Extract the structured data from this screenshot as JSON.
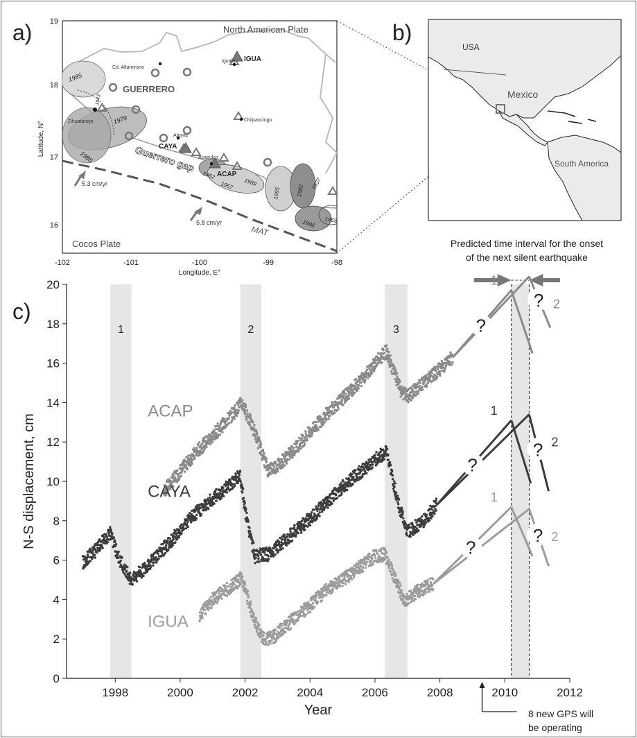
{
  "panels": {
    "a": {
      "label": "a)",
      "xlabel": "Longitude, E°",
      "ylabel": "Latitude, N°",
      "xticks": [
        "-102",
        "-101",
        "-100",
        "-99",
        "-98"
      ],
      "yticks": [
        "19",
        "18",
        "17",
        "16"
      ],
      "plate_north": "North American Plate",
      "plate_cocos": "Cocos Plate",
      "state": "GUERRERO",
      "gap": "Guerrero gap",
      "trench": "MAT",
      "rate1": "5.3 cm/yr",
      "rate2": "5.8 cm/yr",
      "cities": [
        "Cd. Altamirano",
        "Iguala",
        "Zihuatanejo",
        "Atoyac",
        "Chilpancingo",
        "Acapulco"
      ],
      "stations": [
        "IGUA",
        "CAYA",
        "ACAP"
      ],
      "quake_years": [
        "1985",
        "1943",
        "1979",
        "1985",
        "1962",
        "1957",
        "1989",
        "1995",
        "1982",
        "1937",
        "1996",
        "1968"
      ]
    },
    "b": {
      "label": "b)",
      "labels": [
        "USA",
        "Mexico",
        "South America"
      ]
    },
    "c": {
      "label": "c)",
      "prediction_text_1": "Predicted time interval for the onset",
      "prediction_text_2": "of the next silent earthquake",
      "gps_note_1": "8 new GPS will",
      "gps_note_2": "be operating",
      "question": "?"
    }
  },
  "chart_data": {
    "type": "scatter",
    "xlabel": "Year",
    "ylabel": "N-S displacement, cm",
    "xlim": [
      1996.5,
      2012
    ],
    "ylim": [
      0,
      20
    ],
    "xticks": [
      1998,
      2000,
      2002,
      2004,
      2006,
      2008,
      2010,
      2012
    ],
    "yticks": [
      0,
      2,
      4,
      6,
      8,
      10,
      12,
      14,
      16,
      18,
      20
    ],
    "events": [
      {
        "label": "1",
        "start": 1997.85,
        "end": 1998.5
      },
      {
        "label": "2",
        "start": 2001.85,
        "end": 2002.5
      },
      {
        "label": "3",
        "start": 2006.3,
        "end": 2007.0
      }
    ],
    "prediction_interval": [
      2010.2,
      2010.75
    ],
    "gps_start_year": 2009.3,
    "series": [
      {
        "name": "ACAP",
        "color": "#8a8a8a",
        "x": [
          1999.5,
          2000.0,
          2000.5,
          2001.0,
          2001.5,
          2001.9,
          2002.3,
          2002.7,
          2003.0,
          2003.5,
          2004.0,
          2004.5,
          2005.0,
          2005.5,
          2006.0,
          2006.35,
          2006.8,
          2007.0,
          2007.5,
          2008.0,
          2008.4
        ],
        "y": [
          9.5,
          10.5,
          11.5,
          12.3,
          13.2,
          14.0,
          12.5,
          10.6,
          10.8,
          11.6,
          12.5,
          13.4,
          14.2,
          15.0,
          16.0,
          16.6,
          14.6,
          14.3,
          15.0,
          15.7,
          16.3
        ]
      },
      {
        "name": "CAYA",
        "color": "#3c3c3c",
        "x": [
          2000.0,
          2000.5,
          2001.0,
          2001.5,
          2001.85,
          2002.0,
          2002.3,
          2002.7,
          2003.0,
          2003.5,
          2004.0,
          2004.5,
          2005.0,
          2005.5,
          2006.0,
          2006.35,
          2006.7,
          2007.0,
          2007.5,
          2007.9
        ],
        "y": [
          7.6,
          8.4,
          9.1,
          9.8,
          10.3,
          8.5,
          6.2,
          6.3,
          6.7,
          7.4,
          8.1,
          8.9,
          9.7,
          10.4,
          11.1,
          11.5,
          9.0,
          7.4,
          8.0,
          8.8
        ]
      },
      {
        "name": "CAYA",
        "color": "#3c3c3c",
        "x": [
          1997.0,
          1997.4,
          1997.85,
          1998.1,
          1998.5,
          1999.0,
          1999.5,
          2000.0
        ],
        "y": [
          5.9,
          6.5,
          7.4,
          6.1,
          5.0,
          5.7,
          6.6,
          7.5
        ]
      },
      {
        "name": "IGUA",
        "color": "#9c9c9c",
        "x": [
          2000.6,
          2001.0,
          2001.5,
          2001.9,
          2002.2,
          2002.5,
          2002.8,
          2003.0,
          2003.5,
          2004.0,
          2004.5,
          2005.0,
          2005.5,
          2006.0,
          2006.3,
          2006.7,
          2006.9,
          2007.3,
          2007.8
        ],
        "y": [
          3.2,
          4.0,
          4.6,
          5.1,
          3.4,
          2.1,
          2.0,
          2.3,
          3.0,
          3.7,
          4.5,
          5.0,
          5.6,
          6.2,
          6.3,
          4.8,
          3.9,
          4.4,
          4.8
        ]
      }
    ],
    "forecast_lines": [
      {
        "series": "ACAP",
        "color": "#8a8a8a",
        "from": [
          2008.4,
          16.3
        ],
        "branches": [
          {
            "label": "1",
            "peak": [
              2010.2,
              19.7
            ],
            "end": [
              2010.85,
              16.5
            ]
          },
          {
            "label": "2",
            "peak": [
              2010.75,
              20.4
            ],
            "end": [
              2011.4,
              17.8
            ]
          }
        ]
      },
      {
        "series": "CAYA",
        "color": "#3c3c3c",
        "from": [
          2007.9,
          8.8
        ],
        "branches": [
          {
            "label": "1",
            "peak": [
              2010.2,
              13.1
            ],
            "end": [
              2010.8,
              9.9
            ]
          },
          {
            "label": "2",
            "peak": [
              2010.75,
              13.4
            ],
            "end": [
              2011.35,
              9.5
            ]
          }
        ]
      },
      {
        "series": "IGUA",
        "color": "#9c9c9c",
        "from": [
          2007.8,
          4.8
        ],
        "branches": [
          {
            "label": "1",
            "peak": [
              2010.2,
              8.7
            ],
            "end": [
              2010.85,
              6.2
            ]
          },
          {
            "label": "2",
            "peak": [
              2010.75,
              8.6
            ],
            "end": [
              2011.35,
              5.7
            ]
          }
        ]
      }
    ],
    "series_label_positions": {
      "ACAP": [
        1999.0,
        13.3
      ],
      "CAYA": [
        1999.0,
        9.2
      ],
      "IGUA": [
        1999.0,
        2.6
      ]
    }
  }
}
